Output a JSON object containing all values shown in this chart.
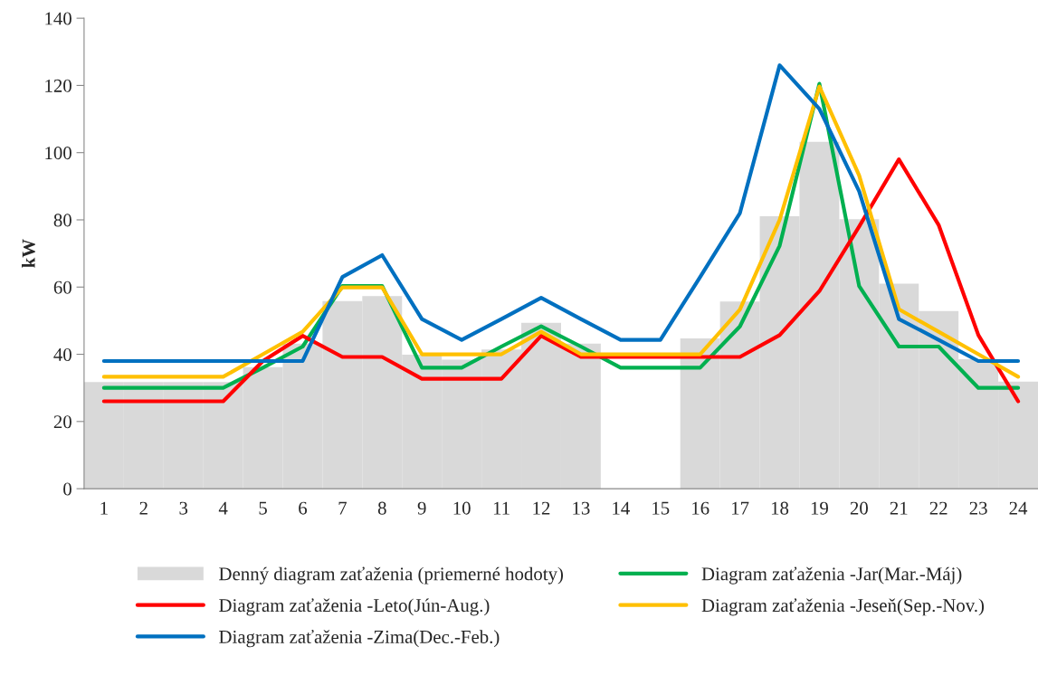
{
  "chart_data": {
    "type": "line",
    "ylabel": "kW",
    "categories": [
      "1",
      "2",
      "3",
      "4",
      "5",
      "6",
      "7",
      "8",
      "9",
      "10",
      "11",
      "12",
      "13",
      "14",
      "15",
      "16",
      "17",
      "18",
      "19",
      "20",
      "21",
      "22",
      "23",
      "24"
    ],
    "series": [
      {
        "name": "Denný diagram zaťaženia (priemerné hodoty)",
        "type": "bar",
        "color": "#d9d9d9",
        "values": [
          31.7,
          31.7,
          31.7,
          31.7,
          36.2,
          43.2,
          55.8,
          57.3,
          39.9,
          38.4,
          41.4,
          49.4,
          43.2,
          null,
          null,
          44.7,
          55.7,
          81.1,
          103.2,
          80.2,
          61,
          52.9,
          38.5,
          31.9
        ]
      },
      {
        "name": "Diagram zaťaženia -Jar(Mar.-Máj)",
        "color": "#00b050",
        "values": [
          30,
          30,
          30,
          30,
          36,
          42.3,
          60.3,
          60.3,
          36,
          36,
          42.3,
          48.3,
          42.3,
          36,
          36,
          36,
          48.3,
          72.3,
          120.5,
          60.3,
          42.3,
          42.3,
          30,
          30
        ]
      },
      {
        "name": "Diagram zaťaženia -Leto(Jún-Aug.)",
        "color": "#ff0000",
        "values": [
          26,
          26,
          26,
          26,
          38,
          45.5,
          39.2,
          39.2,
          32.7,
          32.7,
          32.7,
          45.5,
          39.2,
          39.2,
          39.2,
          39.2,
          39.2,
          45.7,
          58.8,
          78,
          98,
          78.5,
          45.7,
          26
        ]
      },
      {
        "name": "Diagram zaťaženia -Jeseň(Sep.-Nov.)",
        "color": "#ffc000",
        "values": [
          33.3,
          33.3,
          33.3,
          33.3,
          40,
          46.7,
          59.9,
          59.9,
          40,
          40,
          40,
          46.7,
          40,
          40,
          40,
          40,
          53.3,
          80,
          119.7,
          93.2,
          53.4,
          46.7,
          40,
          33.3
        ]
      },
      {
        "name": "Diagram zaťaženia -Zima(Dec.-Feb.)",
        "color": "#0070c0",
        "values": [
          38,
          38,
          38,
          38,
          38,
          38,
          63,
          69.5,
          50.5,
          44.3,
          50.5,
          56.8,
          50.5,
          44.3,
          44.3,
          63,
          82,
          126,
          113,
          88.5,
          50.5,
          44.3,
          38,
          38
        ]
      }
    ],
    "ylim": [
      0,
      140
    ],
    "yticks": [
      0,
      20,
      40,
      60,
      80,
      100,
      120,
      140
    ],
    "grid": false,
    "legend": "bottom",
    "marker": "none",
    "line_style": "solid"
  }
}
